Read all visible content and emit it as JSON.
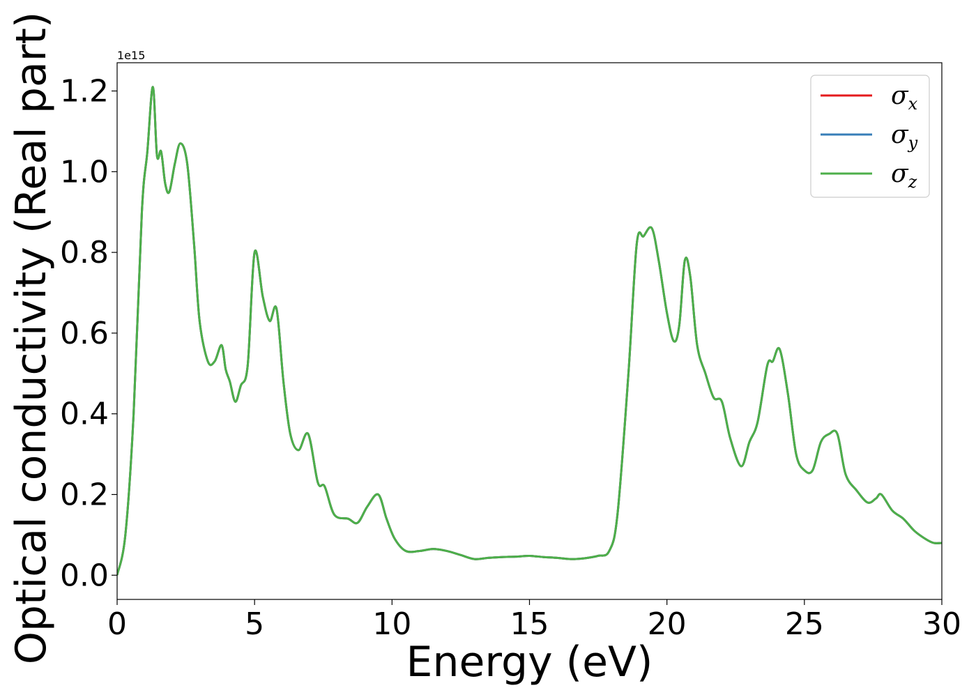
{
  "chart_data": {
    "type": "line",
    "xlabel": "Energy (eV)",
    "ylabel": "Optical conductivity (Real part)",
    "offset_text": "1e15",
    "xlim": [
      0,
      30
    ],
    "ylim": [
      -0.06,
      1.27
    ],
    "scale": 1000000000000000.0,
    "xticks": [
      0,
      5,
      10,
      15,
      20,
      25,
      30
    ],
    "xtick_labels": [
      "0",
      "5",
      "10",
      "15",
      "20",
      "25",
      "30"
    ],
    "yticks": [
      0.0,
      0.2,
      0.4,
      0.6,
      0.8,
      1.0,
      1.2
    ],
    "ytick_labels": [
      "0.0",
      "0.2",
      "0.4",
      "0.6",
      "0.8",
      "1.0",
      "1.2"
    ],
    "legend_position": "upper right",
    "series": [
      {
        "name": "σx",
        "symbol": "σ",
        "sub": "x",
        "color": "#e41a1c"
      },
      {
        "name": "σy",
        "symbol": "σ",
        "sub": "y",
        "color": "#377eb8"
      },
      {
        "name": "σz",
        "symbol": "σ",
        "sub": "z",
        "color": "#4daf4a"
      }
    ],
    "x": [
      0,
      0.3,
      0.6,
      0.9,
      1.1,
      1.3,
      1.45,
      1.6,
      1.75,
      1.9,
      2.1,
      2.3,
      2.55,
      2.8,
      3.0,
      3.3,
      3.55,
      3.8,
      3.95,
      4.1,
      4.3,
      4.5,
      4.75,
      5.0,
      5.3,
      5.55,
      5.8,
      6.05,
      6.3,
      6.6,
      6.95,
      7.3,
      7.55,
      7.9,
      8.4,
      8.75,
      9.1,
      9.5,
      9.8,
      10.1,
      10.5,
      11.0,
      11.5,
      12.0,
      12.5,
      13.0,
      13.5,
      14.0,
      14.5,
      15.0,
      15.5,
      16.0,
      16.5,
      17.0,
      17.5,
      17.9,
      18.2,
      18.6,
      18.9,
      19.15,
      19.45,
      19.7,
      20.0,
      20.25,
      20.45,
      20.65,
      20.85,
      21.1,
      21.4,
      21.7,
      22.0,
      22.3,
      22.7,
      23.0,
      23.3,
      23.65,
      23.85,
      24.1,
      24.4,
      24.7,
      25.0,
      25.3,
      25.6,
      25.9,
      26.2,
      26.5,
      26.9,
      27.3,
      27.6,
      27.8,
      28.2,
      28.6,
      29.0,
      29.4,
      29.7,
      30.0
    ],
    "y": [
      0.0,
      0.1,
      0.4,
      0.9,
      1.05,
      1.21,
      1.04,
      1.05,
      0.97,
      0.95,
      1.02,
      1.07,
      1.02,
      0.82,
      0.63,
      0.53,
      0.53,
      0.57,
      0.51,
      0.48,
      0.43,
      0.47,
      0.52,
      0.8,
      0.69,
      0.63,
      0.66,
      0.48,
      0.35,
      0.31,
      0.35,
      0.23,
      0.22,
      0.15,
      0.14,
      0.13,
      0.17,
      0.2,
      0.14,
      0.09,
      0.06,
      0.06,
      0.065,
      0.06,
      0.05,
      0.04,
      0.043,
      0.045,
      0.046,
      0.048,
      0.045,
      0.043,
      0.04,
      0.042,
      0.048,
      0.06,
      0.15,
      0.5,
      0.82,
      0.84,
      0.86,
      0.78,
      0.65,
      0.58,
      0.62,
      0.78,
      0.74,
      0.57,
      0.5,
      0.44,
      0.43,
      0.34,
      0.27,
      0.33,
      0.38,
      0.52,
      0.53,
      0.56,
      0.45,
      0.3,
      0.26,
      0.26,
      0.33,
      0.35,
      0.35,
      0.25,
      0.21,
      0.18,
      0.19,
      0.2,
      0.16,
      0.14,
      0.11,
      0.09,
      0.08,
      0.08
    ]
  }
}
